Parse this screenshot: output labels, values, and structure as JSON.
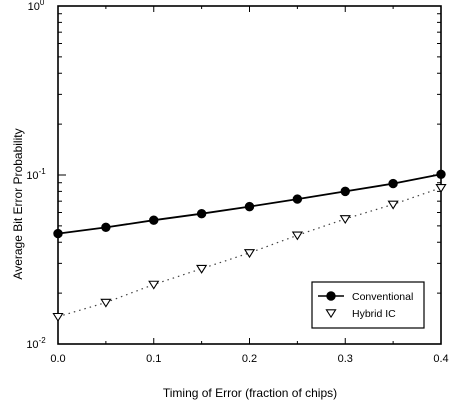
{
  "chart_data": {
    "type": "line",
    "title": "",
    "xlabel": "Timing of Error (fraction of chips)",
    "ylabel": "Average Bit Error Probability",
    "xlim": [
      0.0,
      0.4
    ],
    "ylim": [
      0.01,
      1
    ],
    "yscale": "log",
    "grid": false,
    "legend_position": "bottom-right",
    "x_ticks": [
      {
        "value": 0.0,
        "label": "0.0"
      },
      {
        "value": 0.1,
        "label": "0.1"
      },
      {
        "value": 0.2,
        "label": "0.2"
      },
      {
        "value": 0.3,
        "label": "0.3"
      },
      {
        "value": 0.4,
        "label": "0.4"
      }
    ],
    "y_ticks": [
      {
        "value": 1,
        "base": "10",
        "exp": "0"
      },
      {
        "value": 0.1,
        "base": "10",
        "exp": "-1"
      },
      {
        "value": 0.01,
        "base": "10",
        "exp": "-2"
      }
    ],
    "x": [
      0.0,
      0.05,
      0.1,
      0.15,
      0.2,
      0.25,
      0.3,
      0.35,
      0.4
    ],
    "series": [
      {
        "name": "Conventional",
        "marker": "filled-circle",
        "line_style": "solid",
        "color": "#000000",
        "values": [
          0.045,
          0.049,
          0.054,
          0.059,
          0.065,
          0.072,
          0.08,
          0.089,
          0.101
        ]
      },
      {
        "name": "Hybrid IC",
        "marker": "open-triangle-down",
        "line_style": "dotted",
        "color": "#000000",
        "values": [
          0.0145,
          0.0176,
          0.0225,
          0.0279,
          0.0346,
          0.044,
          0.055,
          0.067,
          0.084
        ]
      }
    ]
  }
}
